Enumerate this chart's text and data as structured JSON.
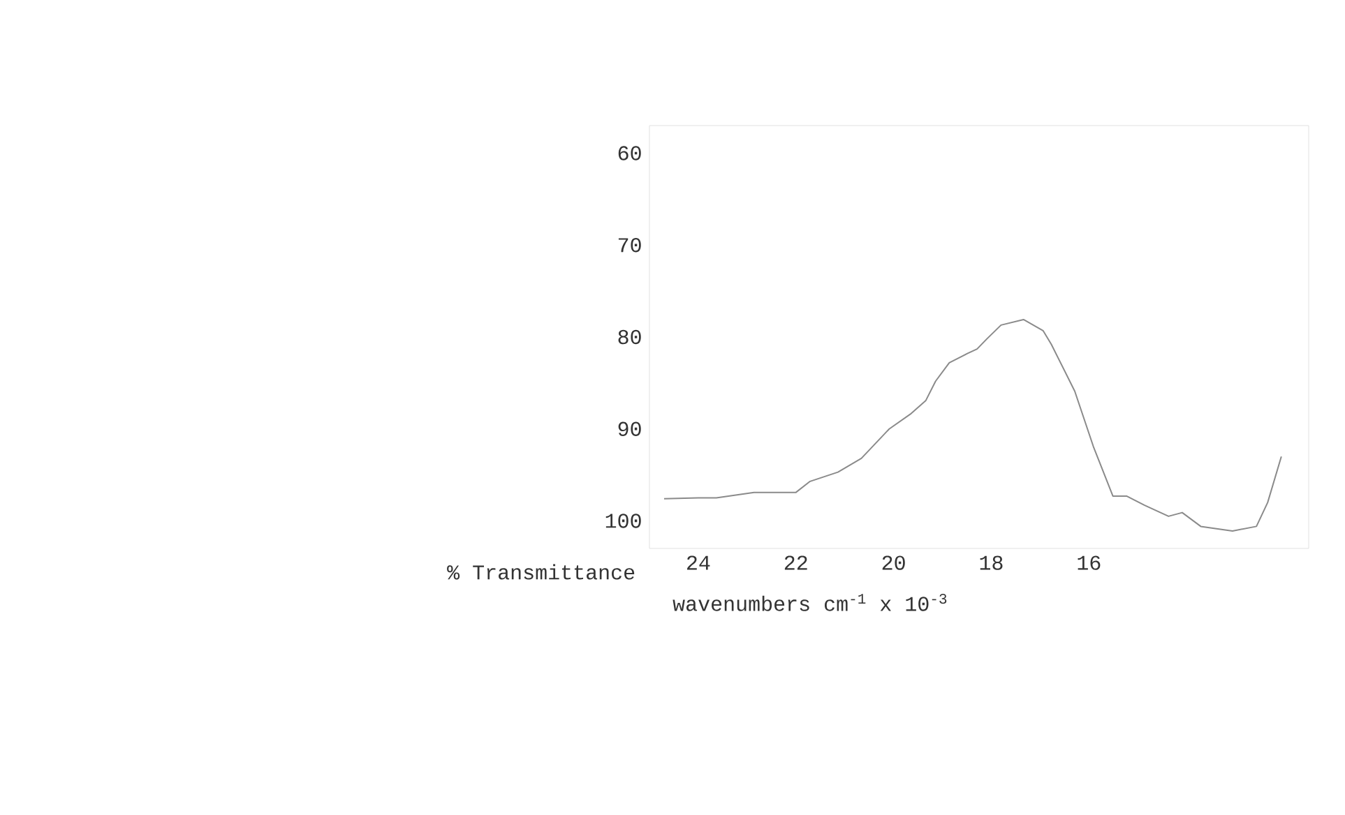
{
  "chart_data": {
    "type": "line",
    "xlabel": "wavenumbers cm$^{-1}$ x 10$^{-3}$",
    "ylabel": "% Transmittance",
    "xlim": [
      25,
      11.5
    ],
    "ylim": [
      103,
      57
    ],
    "xticks": [
      24,
      22,
      20,
      18,
      16
    ],
    "yticks": [
      60,
      70,
      80,
      90,
      100
    ],
    "grid": false,
    "series": [
      {
        "color": "#8a8a8a",
        "x": [
          24.7,
          24.0,
          23.63,
          22.86,
          22.0,
          21.71,
          21.14,
          20.66,
          20.09,
          19.66,
          19.34,
          19.14,
          18.86,
          18.49,
          18.29,
          18.09,
          17.8,
          17.34,
          16.94,
          16.77,
          16.29,
          15.91,
          15.51,
          15.23,
          14.86,
          14.37,
          14.09,
          13.71,
          13.06,
          12.57,
          12.34,
          12.06
        ],
        "values": [
          97.6,
          97.5,
          97.5,
          96.9,
          96.9,
          95.7,
          94.7,
          93.2,
          90.0,
          88.4,
          86.9,
          84.8,
          82.8,
          81.8,
          81.3,
          80.2,
          78.7,
          78.1,
          79.3,
          80.8,
          85.9,
          91.9,
          97.3,
          97.3,
          98.3,
          99.5,
          99.1,
          100.6,
          101.1,
          100.6,
          98.0,
          93.0
        ]
      }
    ]
  }
}
